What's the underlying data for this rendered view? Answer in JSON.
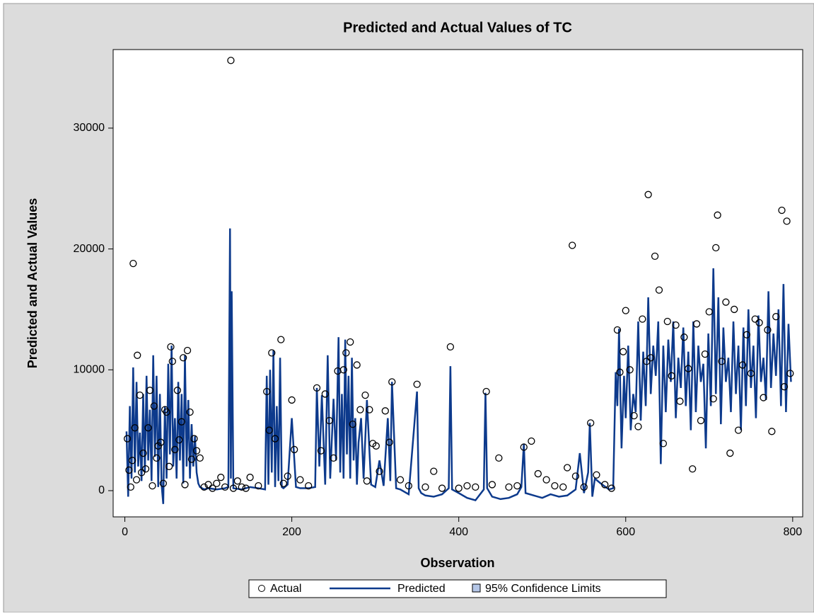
{
  "chart_data": {
    "type": "scatter-line",
    "title": "Predicted and Actual Values of TC",
    "x_label": "Observation",
    "y_label": "Predicted and Actual Values",
    "xlim": [
      -14,
      812
    ],
    "ylim": [
      -2170,
      36500
    ],
    "xticks": [
      0,
      200,
      400,
      600,
      800
    ],
    "yticks": [
      0,
      10000,
      20000,
      30000
    ],
    "series": [
      {
        "name": "Actual",
        "color": "#000000",
        "marker": "circle",
        "x": [
          3,
          5,
          7,
          9,
          10,
          12,
          14,
          15,
          18,
          20,
          22,
          25,
          28,
          30,
          33,
          35,
          38,
          40,
          43,
          46,
          48,
          50,
          53,
          55,
          57,
          60,
          63,
          65,
          68,
          70,
          72,
          75,
          78,
          80,
          83,
          86,
          90,
          95,
          100,
          105,
          110,
          115,
          120,
          127,
          130,
          135,
          140,
          145,
          150,
          160,
          170,
          173,
          176,
          180,
          187,
          190,
          195,
          200,
          203,
          210,
          220,
          230,
          235,
          240,
          245,
          250,
          255,
          262,
          265,
          270,
          273,
          278,
          282,
          288,
          290,
          293,
          297,
          301,
          305,
          312,
          317,
          320,
          330,
          340,
          350,
          360,
          370,
          380,
          390,
          400,
          410,
          420,
          433,
          440,
          448,
          460,
          470,
          478,
          487,
          495,
          505,
          515,
          525,
          530,
          536,
          540,
          550,
          558,
          565,
          575,
          583,
          590,
          593,
          597,
          600,
          605,
          610,
          615,
          620,
          625,
          627,
          630,
          635,
          640,
          645,
          650,
          655,
          660,
          665,
          670,
          675,
          680,
          685,
          690,
          695,
          700,
          705,
          708,
          710,
          715,
          720,
          725,
          730,
          735,
          740,
          745,
          750,
          755,
          760,
          765,
          770,
          775,
          780,
          787,
          790,
          793,
          797
        ],
        "values": [
          4300,
          1700,
          300,
          2500,
          18800,
          5200,
          900,
          11200,
          7900,
          1500,
          3100,
          1800,
          5200,
          8300,
          400,
          7000,
          2700,
          3700,
          4000,
          600,
          6700,
          6500,
          2000,
          11900,
          10700,
          3400,
          8300,
          4200,
          5700,
          11000,
          500,
          11600,
          6500,
          2600,
          4300,
          3300,
          2700,
          300,
          500,
          200,
          600,
          1100,
          300,
          35600,
          200,
          800,
          300,
          200,
          1100,
          400,
          8200,
          5000,
          11400,
          4300,
          12500,
          600,
          1200,
          7500,
          3400,
          900,
          400,
          8500,
          3300,
          8000,
          5800,
          2700,
          9900,
          10000,
          11400,
          12300,
          5500,
          10400,
          6700,
          7900,
          800,
          6700,
          3900,
          3700,
          1600,
          6600,
          4000,
          9000,
          900,
          400,
          8800,
          300,
          1600,
          200,
          11900,
          200,
          400,
          300,
          8200,
          500,
          2700,
          300,
          400,
          3600,
          4100,
          1400,
          900,
          400,
          300,
          1900,
          20300,
          1200,
          300,
          5600,
          1300,
          500,
          200,
          13300,
          9800,
          11500,
          14900,
          10000,
          6200,
          5300,
          14200,
          10700,
          24500,
          11000,
          19400,
          16600,
          3900,
          14000,
          9500,
          13700,
          7400,
          12700,
          10100,
          1800,
          13800,
          5800,
          11300,
          14800,
          7600,
          20100,
          22800,
          10700,
          15600,
          3100,
          15000,
          5000,
          10400,
          12900,
          9700,
          14200,
          13900,
          7700,
          13300,
          4900,
          14400,
          23200,
          8600,
          22300,
          9700
        ]
      },
      {
        "name": "Predicted",
        "color": "#0d3a8c",
        "marker": "line",
        "x": [
          2,
          4,
          6,
          8,
          10,
          12,
          14,
          16,
          18,
          20,
          22,
          24,
          26,
          28,
          30,
          32,
          34,
          36,
          38,
          40,
          42,
          44,
          46,
          48,
          50,
          52,
          54,
          56,
          58,
          60,
          62,
          64,
          66,
          68,
          70,
          72,
          74,
          76,
          78,
          80,
          82,
          84,
          86,
          88,
          90,
          95,
          100,
          110,
          120,
          124,
          126,
          127,
          128,
          130,
          140,
          150,
          160,
          168,
          170,
          172,
          174,
          176,
          178,
          180,
          182,
          184,
          186,
          188,
          190,
          195,
          200,
          205,
          210,
          220,
          228,
          230,
          233,
          236,
          240,
          243,
          246,
          250,
          253,
          256,
          258,
          260,
          262,
          264,
          266,
          268,
          270,
          272,
          274,
          276,
          278,
          280,
          283,
          286,
          290,
          295,
          300,
          305,
          310,
          315,
          318,
          320,
          325,
          330,
          340,
          350,
          352,
          355,
          360,
          370,
          380,
          388,
          390,
          392,
          400,
          410,
          420,
          430,
          432,
          434,
          440,
          450,
          460,
          470,
          475,
          478,
          480,
          490,
          500,
          510,
          520,
          530,
          540,
          545,
          550,
          555,
          557,
          560,
          563,
          570,
          580,
          585,
          588,
          590,
          592,
          595,
          598,
          600,
          603,
          606,
          609,
          612,
          615,
          618,
          621,
          624,
          627,
          630,
          633,
          636,
          639,
          642,
          645,
          648,
          651,
          654,
          657,
          660,
          663,
          666,
          669,
          672,
          675,
          678,
          681,
          684,
          687,
          690,
          693,
          696,
          699,
          702,
          705,
          708,
          711,
          714,
          717,
          720,
          723,
          726,
          729,
          732,
          735,
          738,
          741,
          744,
          747,
          750,
          753,
          756,
          759,
          762,
          765,
          768,
          771,
          774,
          777,
          780,
          783,
          786,
          789,
          792,
          795,
          798
        ],
        "values": [
          4900,
          -500,
          7000,
          1000,
          10200,
          1500,
          9000,
          2000,
          4800,
          800,
          8000,
          1500,
          9500,
          2500,
          6700,
          800,
          11200,
          2800,
          9500,
          300,
          8000,
          500,
          -1100,
          7000,
          1000,
          10500,
          3000,
          12000,
          2000,
          6000,
          1000,
          9000,
          2500,
          8000,
          600,
          11200,
          2000,
          7500,
          1000,
          5500,
          2000,
          4500,
          1500,
          600,
          300,
          100,
          200,
          100,
          200,
          300,
          21700,
          1000,
          16500,
          200,
          100,
          300,
          200,
          100,
          9500,
          500,
          10000,
          1500,
          11600,
          300,
          7000,
          800,
          11000,
          300,
          200,
          500,
          6000,
          300,
          200,
          200,
          300,
          8500,
          2000,
          7900,
          500,
          11200,
          1000,
          7600,
          2500,
          12700,
          1500,
          8000,
          1000,
          12500,
          3000,
          9500,
          1000,
          11000,
          2500,
          6000,
          500,
          4000,
          6000,
          1000,
          7500,
          500,
          300,
          2500,
          400,
          6000,
          800,
          9000,
          200,
          100,
          -300,
          8200,
          200,
          -200,
          -400,
          -500,
          -300,
          200,
          10300,
          100,
          -200,
          -600,
          -800,
          100,
          8100,
          200,
          -500,
          -700,
          -600,
          -300,
          300,
          3900,
          -200,
          -400,
          -600,
          -300,
          -500,
          -400,
          100,
          3100,
          -200,
          1500,
          5600,
          -500,
          1000,
          600,
          100,
          200,
          9800,
          7000,
          13400,
          3500,
          9500,
          6000,
          12000,
          5000,
          8000,
          6500,
          14000,
          5800,
          11500,
          7000,
          16000,
          8000,
          12000,
          9500,
          14000,
          2200,
          12000,
          6500,
          12500,
          9000,
          14000,
          6000,
          11000,
          8500,
          13500,
          7000,
          11500,
          5000,
          14000,
          6500,
          12000,
          9000,
          10500,
          3500,
          13000,
          7000,
          18400,
          8000,
          16000,
          5500,
          13500,
          9000,
          11000,
          6500,
          14000,
          8000,
          12000,
          5000,
          13500,
          7000,
          15000,
          8500,
          12000,
          6000,
          14500,
          9000,
          11000,
          7500,
          16500,
          8500,
          13000,
          9500,
          15000,
          7000,
          17100,
          6500,
          13800,
          9000
        ]
      }
    ],
    "band": {
      "name": "95% Confidence Limits",
      "color": "#b4c6e7"
    }
  }
}
